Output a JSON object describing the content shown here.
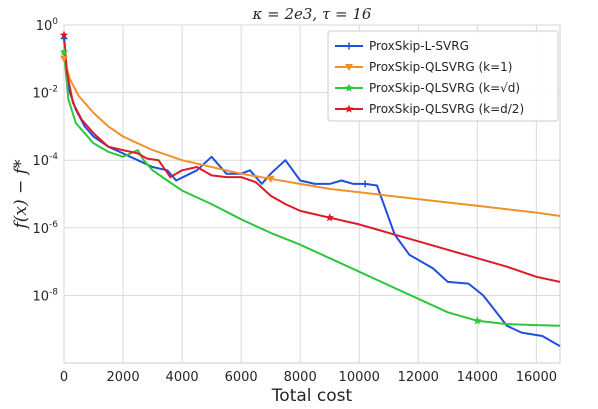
{
  "chart_data": {
    "type": "line",
    "title": "κ = 2e3, τ = 16",
    "xlabel": "Total cost",
    "ylabel": "f(x) − f*",
    "xlim": [
      0,
      16800
    ],
    "ylim_log10": [
      -10,
      0
    ],
    "yscale": "log",
    "grid": true,
    "legend_position": "top-right",
    "x_ticks": [
      0,
      2000,
      4000,
      6000,
      8000,
      10000,
      12000,
      14000,
      16000
    ],
    "x_tick_labels": [
      "0",
      "2000",
      "4000",
      "6000",
      "8000",
      "10000",
      "12000",
      "14000",
      "16000"
    ],
    "y_ticks_log10": [
      0,
      -2,
      -4,
      -6,
      -8
    ],
    "y_tick_labels": [
      {
        "base": "10",
        "exp": "0"
      },
      {
        "base": "10",
        "exp": "-2"
      },
      {
        "base": "10",
        "exp": "-4"
      },
      {
        "base": "10",
        "exp": "-6"
      },
      {
        "base": "10",
        "exp": "-8"
      }
    ],
    "series": [
      {
        "name": "ProxSkip-L-SVRG",
        "color": "#1f4fe0",
        "marker": "plus",
        "points": [
          [
            0,
            -0.4
          ],
          [
            100,
            -1.5
          ],
          [
            200,
            -2.0
          ],
          [
            400,
            -2.5
          ],
          [
            700,
            -3.0
          ],
          [
            1000,
            -3.3
          ],
          [
            1500,
            -3.6
          ],
          [
            2000,
            -3.8
          ],
          [
            2500,
            -4.0
          ],
          [
            3000,
            -4.2
          ],
          [
            3500,
            -4.3
          ],
          [
            3800,
            -4.6
          ],
          [
            4500,
            -4.3
          ],
          [
            5000,
            -3.9
          ],
          [
            5500,
            -4.4
          ],
          [
            6000,
            -4.4
          ],
          [
            6300,
            -4.3
          ],
          [
            6700,
            -4.7
          ],
          [
            7000,
            -4.4
          ],
          [
            7500,
            -4.0
          ],
          [
            8000,
            -4.6
          ],
          [
            8500,
            -4.7
          ],
          [
            9000,
            -4.7
          ],
          [
            9400,
            -4.6
          ],
          [
            9800,
            -4.7
          ],
          [
            10200,
            -4.7
          ],
          [
            10600,
            -4.75
          ],
          [
            11200,
            -6.2
          ],
          [
            11700,
            -6.8
          ],
          [
            12500,
            -7.2
          ],
          [
            13000,
            -7.6
          ],
          [
            13700,
            -7.65
          ],
          [
            14200,
            -8.0
          ],
          [
            15000,
            -8.9
          ],
          [
            15500,
            -9.1
          ],
          [
            16200,
            -9.2
          ],
          [
            16800,
            -9.5
          ]
        ]
      },
      {
        "name": "ProxSkip-QLSVRG (k=1)",
        "color": "#f0912a",
        "marker": "triangle-down",
        "points": [
          [
            0,
            -1.0
          ],
          [
            200,
            -1.6
          ],
          [
            500,
            -2.1
          ],
          [
            1000,
            -2.6
          ],
          [
            1500,
            -3.0
          ],
          [
            2000,
            -3.3
          ],
          [
            3000,
            -3.7
          ],
          [
            4000,
            -4.0
          ],
          [
            5000,
            -4.2
          ],
          [
            6000,
            -4.4
          ],
          [
            7000,
            -4.55
          ],
          [
            8000,
            -4.7
          ],
          [
            9000,
            -4.85
          ],
          [
            10000,
            -4.95
          ],
          [
            11000,
            -5.05
          ],
          [
            12000,
            -5.15
          ],
          [
            13000,
            -5.25
          ],
          [
            14000,
            -5.35
          ],
          [
            15000,
            -5.45
          ],
          [
            16000,
            -5.55
          ],
          [
            16800,
            -5.65
          ]
        ]
      },
      {
        "name": "ProxSkip-QLSVRG (k=√d)",
        "color": "#2ec63c",
        "marker": "star",
        "points": [
          [
            0,
            -0.8
          ],
          [
            150,
            -2.2
          ],
          [
            400,
            -2.9
          ],
          [
            700,
            -3.2
          ],
          [
            1000,
            -3.5
          ],
          [
            1500,
            -3.75
          ],
          [
            2000,
            -3.9
          ],
          [
            2500,
            -3.7
          ],
          [
            2700,
            -4.0
          ],
          [
            3000,
            -4.3
          ],
          [
            3500,
            -4.6
          ],
          [
            4000,
            -4.9
          ],
          [
            5000,
            -5.3
          ],
          [
            6000,
            -5.75
          ],
          [
            7000,
            -6.15
          ],
          [
            8000,
            -6.5
          ],
          [
            9000,
            -6.9
          ],
          [
            10000,
            -7.3
          ],
          [
            11000,
            -7.7
          ],
          [
            12000,
            -8.1
          ],
          [
            13000,
            -8.5
          ],
          [
            14000,
            -8.75
          ],
          [
            15000,
            -8.85
          ],
          [
            16000,
            -8.88
          ],
          [
            16800,
            -8.9
          ]
        ]
      },
      {
        "name": "ProxSkip-QLSVRG (k=d/2)",
        "color": "#dd1a2a",
        "marker": "star",
        "points": [
          [
            0,
            -0.3
          ],
          [
            100,
            -1.4
          ],
          [
            300,
            -2.3
          ],
          [
            600,
            -2.8
          ],
          [
            1000,
            -3.2
          ],
          [
            1500,
            -3.6
          ],
          [
            2000,
            -3.7
          ],
          [
            2500,
            -3.8
          ],
          [
            2800,
            -3.95
          ],
          [
            3200,
            -4.0
          ],
          [
            3600,
            -4.5
          ],
          [
            4000,
            -4.3
          ],
          [
            4500,
            -4.2
          ],
          [
            5000,
            -4.45
          ],
          [
            5500,
            -4.5
          ],
          [
            6000,
            -4.5
          ],
          [
            6500,
            -4.65
          ],
          [
            7000,
            -5.05
          ],
          [
            7500,
            -5.3
          ],
          [
            8000,
            -5.5
          ],
          [
            9000,
            -5.7
          ],
          [
            10000,
            -5.9
          ],
          [
            11000,
            -6.15
          ],
          [
            12000,
            -6.4
          ],
          [
            13000,
            -6.65
          ],
          [
            14000,
            -6.9
          ],
          [
            15000,
            -7.15
          ],
          [
            16000,
            -7.45
          ],
          [
            16800,
            -7.6
          ]
        ]
      }
    ]
  }
}
